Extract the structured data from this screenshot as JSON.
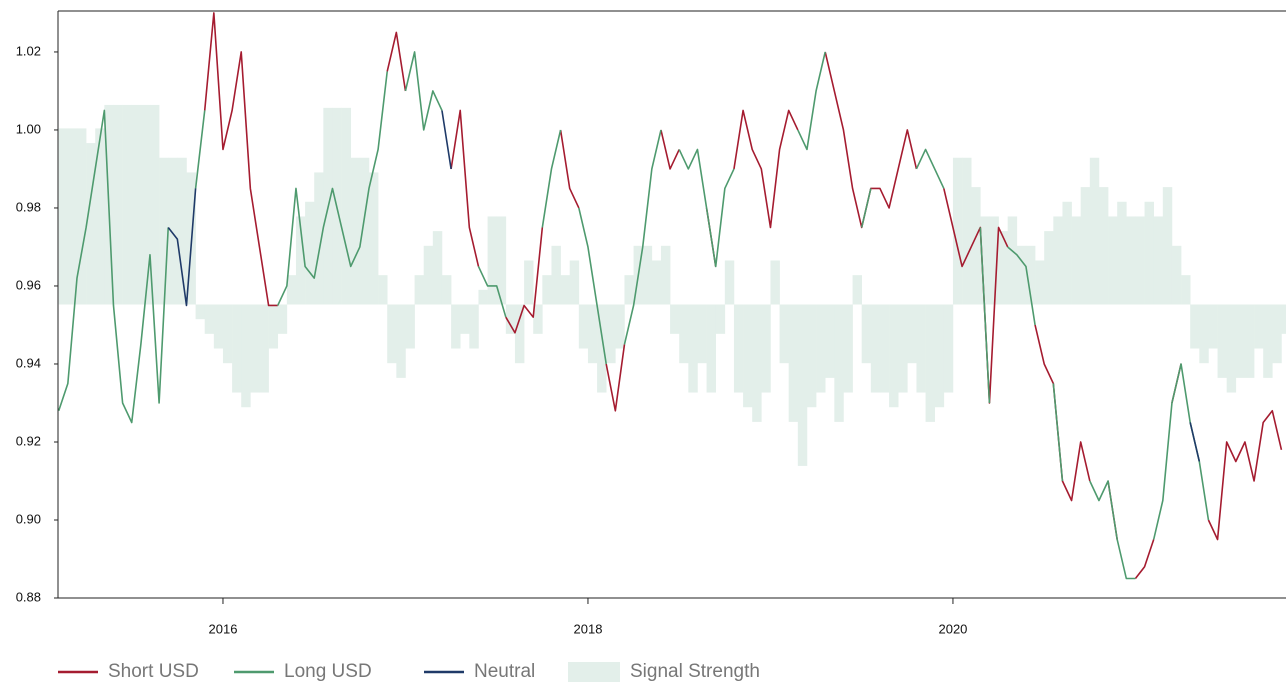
{
  "chart_data": {
    "type": "line",
    "x": [
      2015.1,
      2015.15,
      2015.2,
      2015.25,
      2015.3,
      2015.35,
      2015.4,
      2015.45,
      2015.5,
      2015.55,
      2015.6,
      2015.65,
      2015.7,
      2015.75,
      2015.8,
      2015.85,
      2015.9,
      2015.95,
      2016,
      2016.05,
      2016.1,
      2016.15,
      2016.2,
      2016.25,
      2016.3,
      2016.35,
      2016.4,
      2016.45,
      2016.5,
      2016.55,
      2016.6,
      2016.65,
      2016.7,
      2016.75,
      2016.8,
      2016.85,
      2016.9,
      2016.95,
      2017,
      2017.05,
      2017.1,
      2017.15,
      2017.2,
      2017.25,
      2017.3,
      2017.35,
      2017.4,
      2017.45,
      2017.5,
      2017.55,
      2017.6,
      2017.65,
      2017.7,
      2017.75,
      2017.8,
      2017.85,
      2017.9,
      2017.95,
      2018,
      2018.05,
      2018.1,
      2018.15,
      2018.2,
      2018.25,
      2018.3,
      2018.35,
      2018.4,
      2018.45,
      2018.5,
      2018.55,
      2018.6,
      2018.65,
      2018.7,
      2018.75,
      2018.8,
      2018.85,
      2018.9,
      2018.95,
      2019,
      2019.05,
      2019.1,
      2019.15,
      2019.2,
      2019.25,
      2019.3,
      2019.35,
      2019.4,
      2019.45,
      2019.5,
      2019.55,
      2019.6,
      2019.65,
      2019.7,
      2019.75,
      2019.8,
      2019.85,
      2019.9,
      2019.95,
      2020,
      2020.05,
      2020.1,
      2020.15,
      2020.2,
      2020.25,
      2020.3,
      2020.35,
      2020.4,
      2020.45,
      2020.5,
      2020.55,
      2020.6,
      2020.65,
      2020.7,
      2020.75,
      2020.8,
      2020.85,
      2020.9,
      2020.95,
      2021,
      2021.05,
      2021.1,
      2021.15,
      2021.2,
      2021.25,
      2021.3,
      2021.35,
      2021.4,
      2021.45,
      2021.5,
      2021.55,
      2021.6,
      2021.65,
      2021.7,
      2021.75,
      2021.8
    ],
    "series": [
      {
        "name": "Short USD",
        "color": "#a51c30",
        "values": [
          null,
          null,
          null,
          null,
          null,
          null,
          null,
          null,
          null,
          null,
          null,
          null,
          null,
          null,
          null,
          null,
          1.005,
          1.03,
          0.995,
          1.005,
          1.02,
          0.985,
          0.97,
          0.955,
          0.955,
          null,
          null,
          null,
          null,
          null,
          null,
          null,
          null,
          null,
          null,
          null,
          1.015,
          1.025,
          1.01,
          null,
          null,
          null,
          null,
          0.99,
          1.005,
          0.975,
          0.965,
          null,
          null,
          0.952,
          0.948,
          0.955,
          0.952,
          0.975,
          null,
          1.0,
          0.985,
          0.98,
          null,
          null,
          0.94,
          0.928,
          0.945,
          null,
          null,
          null,
          1.0,
          0.99,
          0.995,
          null,
          null,
          0.98,
          0.965,
          null,
          0.99,
          1.005,
          0.995,
          0.99,
          0.975,
          0.995,
          1.005,
          1.0,
          null,
          null,
          1.02,
          1.01,
          1.0,
          0.985,
          0.975,
          0.985,
          0.985,
          0.98,
          0.99,
          1.0,
          0.99,
          null,
          null,
          0.985,
          0.975,
          0.965,
          0.97,
          0.975,
          0.93,
          0.975,
          0.97,
          null,
          null,
          0.95,
          0.94,
          0.935,
          0.91,
          0.905,
          0.92,
          0.91,
          null,
          0.91,
          0.895,
          null,
          0.885,
          0.888,
          0.895,
          null,
          0.93,
          0.94,
          null,
          null,
          0.9,
          0.895,
          0.92,
          0.915,
          0.92,
          0.91,
          0.925,
          0.928,
          0.918
        ]
      },
      {
        "name": "Long USD",
        "color": "#4e9a6e",
        "values": [
          0.928,
          0.935,
          0.962,
          0.975,
          0.99,
          1.005,
          0.955,
          0.93,
          0.925,
          0.945,
          0.968,
          0.93,
          0.975,
          null,
          null,
          0.985,
          1.005,
          null,
          null,
          null,
          null,
          null,
          null,
          null,
          0.955,
          0.96,
          0.985,
          0.965,
          0.962,
          0.975,
          0.985,
          0.975,
          0.965,
          0.97,
          0.985,
          0.995,
          1.015,
          null,
          1.01,
          1.02,
          1.0,
          1.01,
          1.005,
          null,
          null,
          null,
          0.965,
          0.96,
          0.96,
          0.952,
          null,
          null,
          null,
          0.975,
          0.99,
          1.0,
          null,
          0.98,
          0.97,
          0.955,
          0.94,
          null,
          0.945,
          0.955,
          0.97,
          0.99,
          1.0,
          null,
          0.995,
          0.99,
          0.995,
          0.98,
          0.965,
          0.985,
          0.99,
          null,
          null,
          null,
          null,
          null,
          null,
          1.0,
          0.995,
          1.01,
          1.02,
          null,
          null,
          null,
          0.975,
          0.985,
          null,
          null,
          null,
          null,
          0.99,
          0.995,
          0.99,
          0.985,
          null,
          null,
          null,
          0.975,
          0.93,
          null,
          0.97,
          0.968,
          0.965,
          0.95,
          null,
          0.935,
          0.91,
          null,
          null,
          0.91,
          0.905,
          0.91,
          0.895,
          0.885,
          0.885,
          null,
          0.895,
          0.905,
          0.93,
          0.94,
          0.925,
          0.915,
          0.9,
          null,
          null,
          null,
          null,
          null,
          null,
          null,
          null
        ]
      },
      {
        "name": "Neutral",
        "color": "#1f3a68",
        "values": [
          null,
          null,
          null,
          null,
          null,
          null,
          null,
          null,
          null,
          null,
          null,
          null,
          0.975,
          0.972,
          0.955,
          0.985,
          null,
          null,
          null,
          null,
          null,
          null,
          null,
          null,
          null,
          null,
          null,
          null,
          null,
          null,
          null,
          null,
          null,
          null,
          null,
          null,
          null,
          null,
          null,
          null,
          null,
          null,
          1.005,
          0.99,
          null,
          null,
          null,
          null,
          null,
          null,
          null,
          null,
          null,
          null,
          null,
          null,
          null,
          null,
          null,
          null,
          null,
          null,
          null,
          null,
          null,
          null,
          null,
          null,
          null,
          null,
          null,
          null,
          null,
          null,
          null,
          null,
          null,
          null,
          null,
          null,
          null,
          null,
          null,
          null,
          null,
          null,
          null,
          null,
          null,
          null,
          null,
          null,
          null,
          null,
          null,
          null,
          null,
          null,
          null,
          null,
          null,
          null,
          null,
          null,
          null,
          null,
          null,
          null,
          null,
          null,
          null,
          null,
          null,
          null,
          null,
          null,
          null,
          null,
          null,
          null,
          null,
          null,
          null,
          null,
          0.925,
          0.915,
          null,
          null,
          null,
          null,
          null,
          null,
          null,
          null,
          null
        ]
      },
      {
        "name": "Signal Strength",
        "color": "#e3efea",
        "axis": "y2",
        "values": [
          0.6,
          0.6,
          0.6,
          0.55,
          0.6,
          0.68,
          0.68,
          0.68,
          0.68,
          0.68,
          0.68,
          0.5,
          0.5,
          0.5,
          0.45,
          -0.05,
          -0.1,
          -0.15,
          -0.2,
          -0.3,
          -0.35,
          -0.3,
          -0.3,
          -0.15,
          -0.1,
          0.1,
          0.3,
          0.35,
          0.45,
          0.67,
          0.67,
          0.67,
          0.5,
          0.5,
          0.45,
          0.1,
          -0.2,
          -0.25,
          -0.15,
          0.1,
          0.2,
          0.25,
          0.1,
          -0.15,
          -0.1,
          -0.15,
          0.05,
          0.3,
          0.3,
          -0.1,
          -0.2,
          0.15,
          -0.1,
          0.1,
          0.2,
          0.1,
          0.15,
          -0.15,
          -0.2,
          -0.3,
          -0.2,
          -0.15,
          0.1,
          0.2,
          0.2,
          0.15,
          0.2,
          -0.1,
          -0.2,
          -0.3,
          -0.2,
          -0.3,
          -0.1,
          0.15,
          -0.3,
          -0.35,
          -0.4,
          -0.3,
          0.15,
          -0.2,
          -0.4,
          -0.55,
          -0.35,
          -0.3,
          -0.25,
          -0.4,
          -0.3,
          0.1,
          -0.2,
          -0.3,
          -0.3,
          -0.35,
          -0.3,
          -0.2,
          -0.3,
          -0.4,
          -0.35,
          -0.3,
          0.5,
          0.5,
          0.4,
          0.3,
          0.3,
          0.25,
          0.3,
          0.2,
          0.2,
          0.15,
          0.25,
          0.3,
          0.35,
          0.3,
          0.4,
          0.5,
          0.4,
          0.3,
          0.35,
          0.3,
          0.3,
          0.35,
          0.3,
          0.4,
          0.2,
          0.1,
          -0.15,
          -0.2,
          -0.15,
          -0.25,
          -0.3,
          -0.25,
          -0.25,
          -0.15,
          -0.25,
          -0.2,
          -0.1
        ]
      }
    ],
    "xlim": [
      2015.096,
      2021.825
    ],
    "xticks": [
      2016,
      2018,
      2020
    ],
    "ylim": [
      0.88,
      1.0305
    ],
    "yticks": [
      0.88,
      {
        "value": 0.9,
        "label": "0.90"
      },
      0.92,
      0.94,
      0.96,
      0.98,
      {
        "value": 1.0,
        "label": "1.00"
      },
      1.02
    ],
    "y2lim": [
      -1,
      1
    ]
  }
}
